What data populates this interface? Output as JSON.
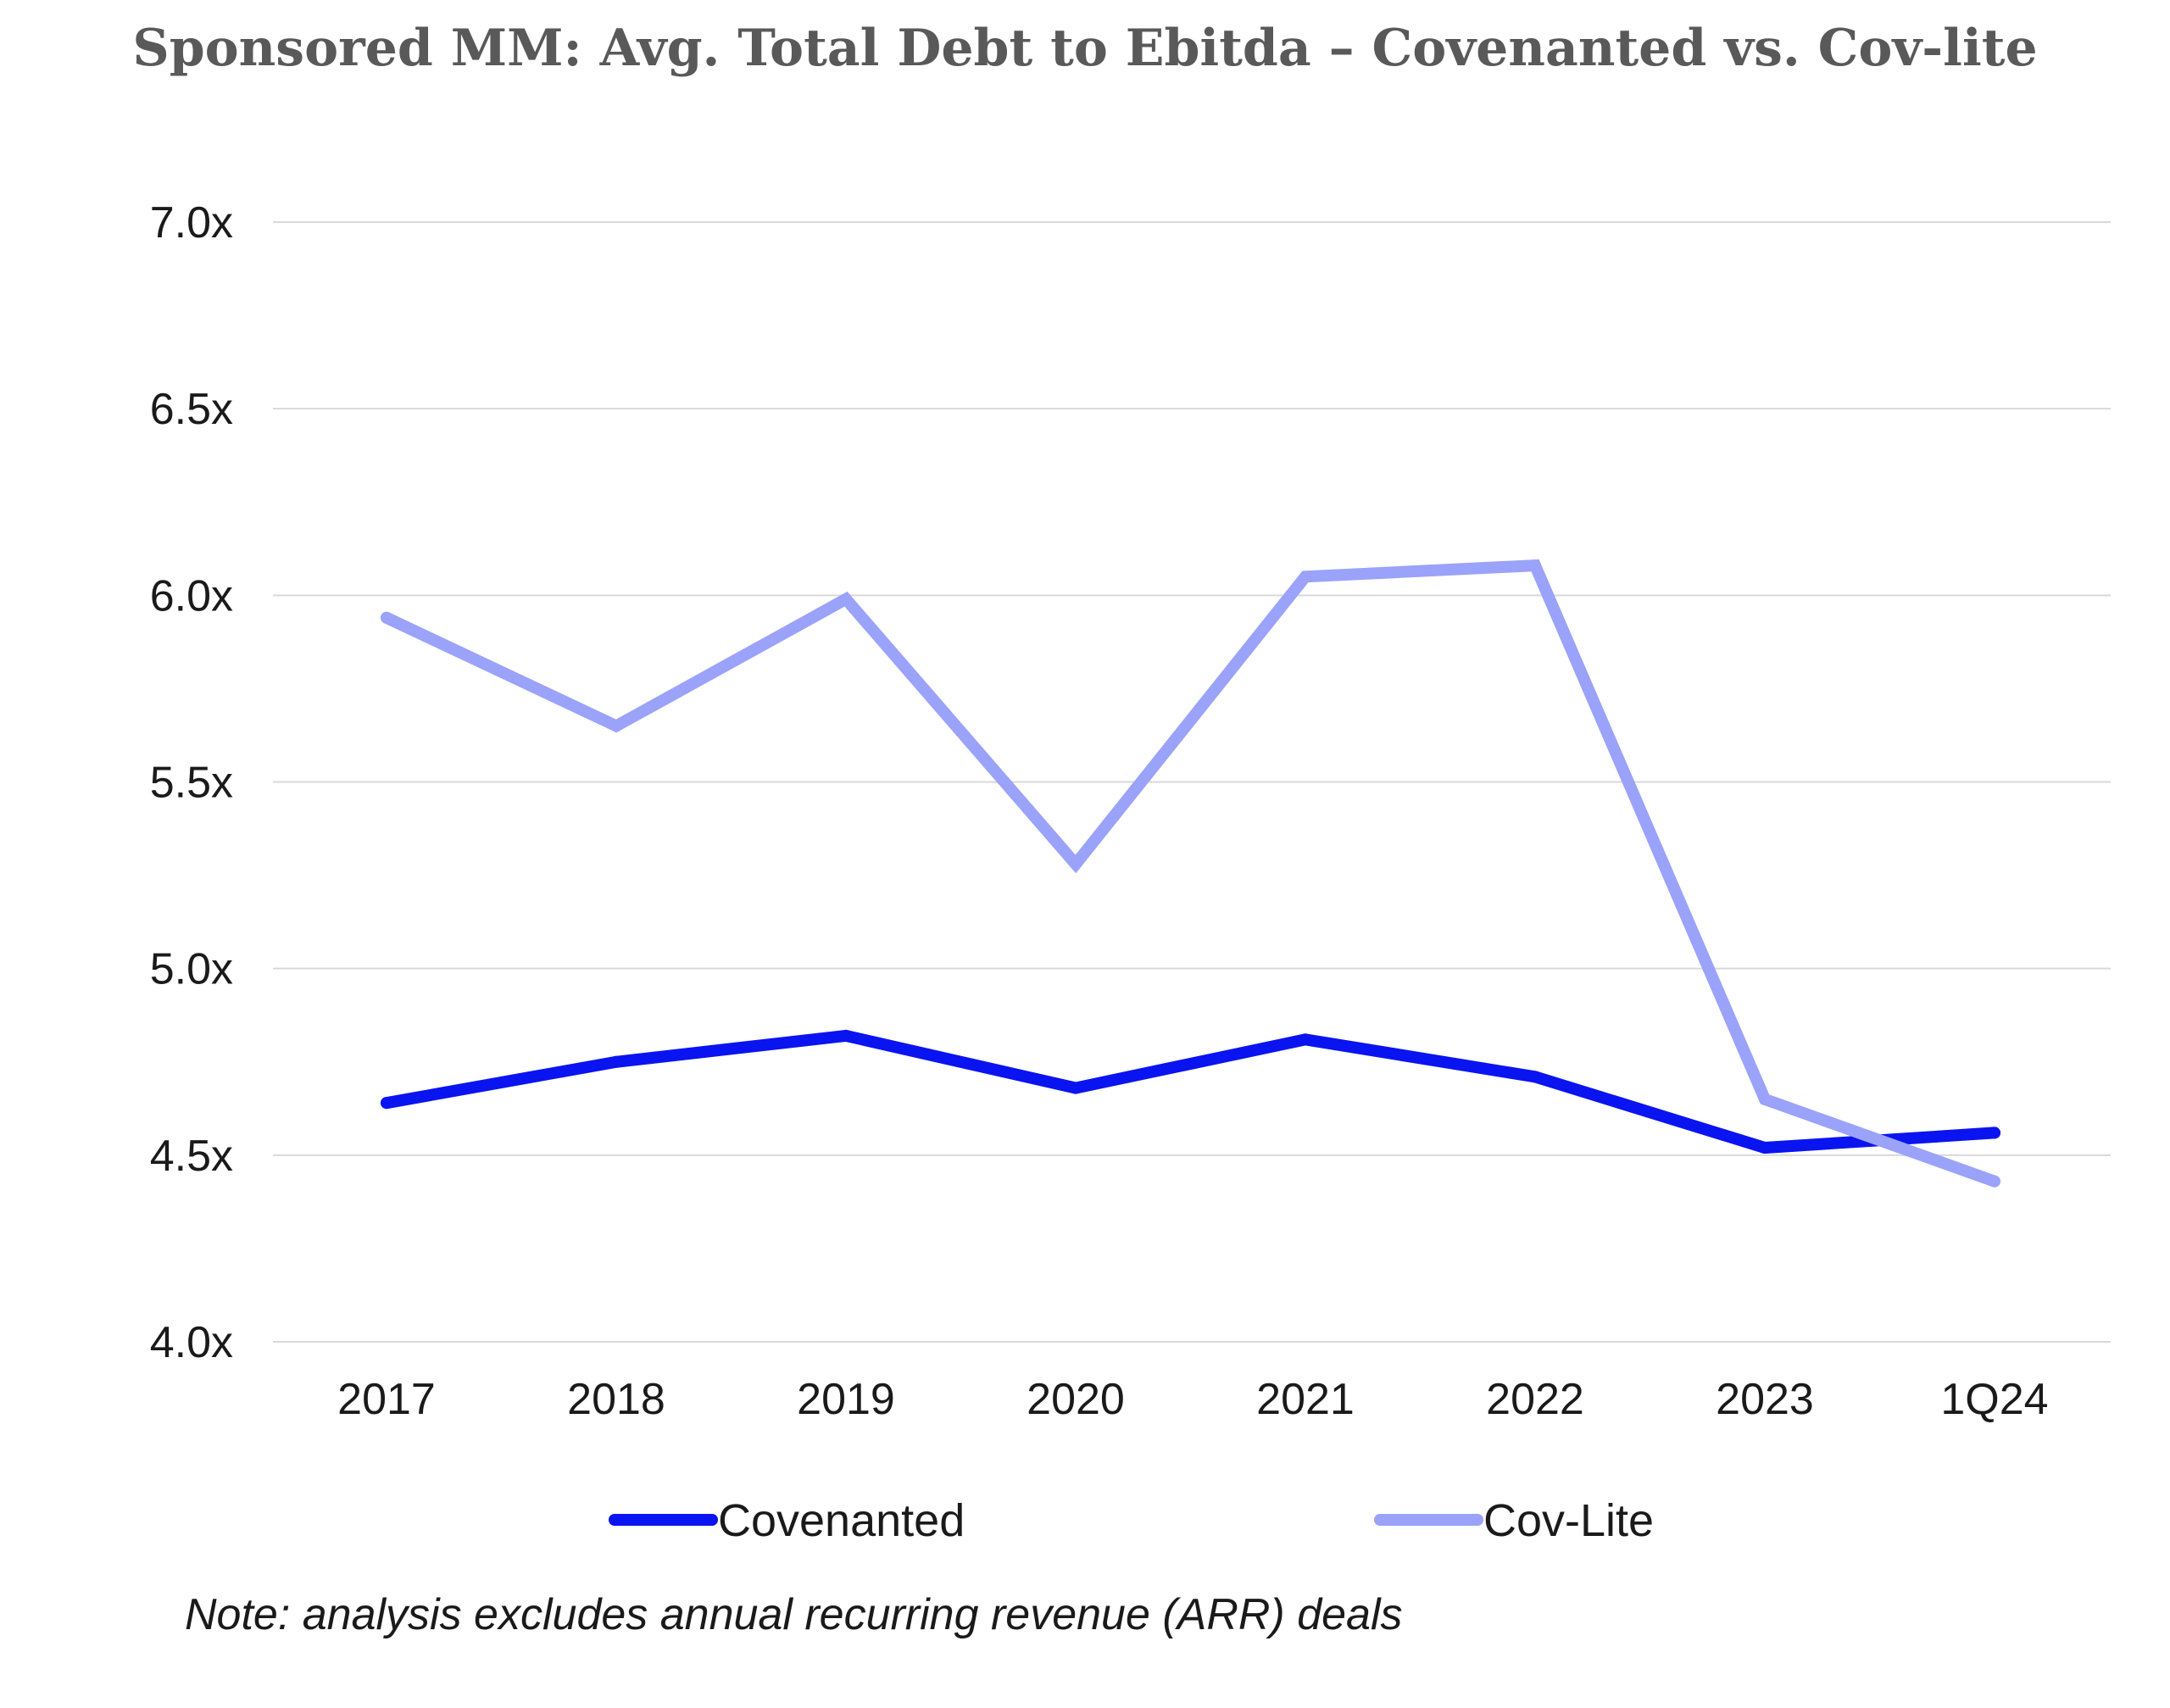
{
  "chart_data": {
    "type": "line",
    "title": "Sponsored MM: Avg. Total Debt to Ebitda – Covenanted vs. Cov-lite",
    "categories": [
      "2017",
      "2018",
      "2019",
      "2020",
      "2021",
      "2022",
      "2023",
      "1Q24"
    ],
    "yticks": [
      "4.0x",
      "4.5x",
      "5.0x",
      "5.5x",
      "6.0x",
      "6.5x",
      "7.0x"
    ],
    "ylim": [
      4.0,
      7.0
    ],
    "ytick_values": [
      4.0,
      4.5,
      5.0,
      5.5,
      6.0,
      6.5,
      7.0
    ],
    "grid": "horizontal",
    "legend_position": "bottom",
    "series": [
      {
        "name": "Covenanted",
        "color": "#0a14f0",
        "values": [
          4.64,
          4.75,
          4.82,
          4.68,
          4.81,
          4.71,
          4.52,
          4.56
        ]
      },
      {
        "name": "Cov-Lite",
        "color": "#9aa3f9",
        "values": [
          5.94,
          5.65,
          5.99,
          5.28,
          6.05,
          6.08,
          4.65,
          4.43
        ]
      }
    ],
    "note": "Note: analysis excludes annual recurring revenue (ARR) deals"
  }
}
